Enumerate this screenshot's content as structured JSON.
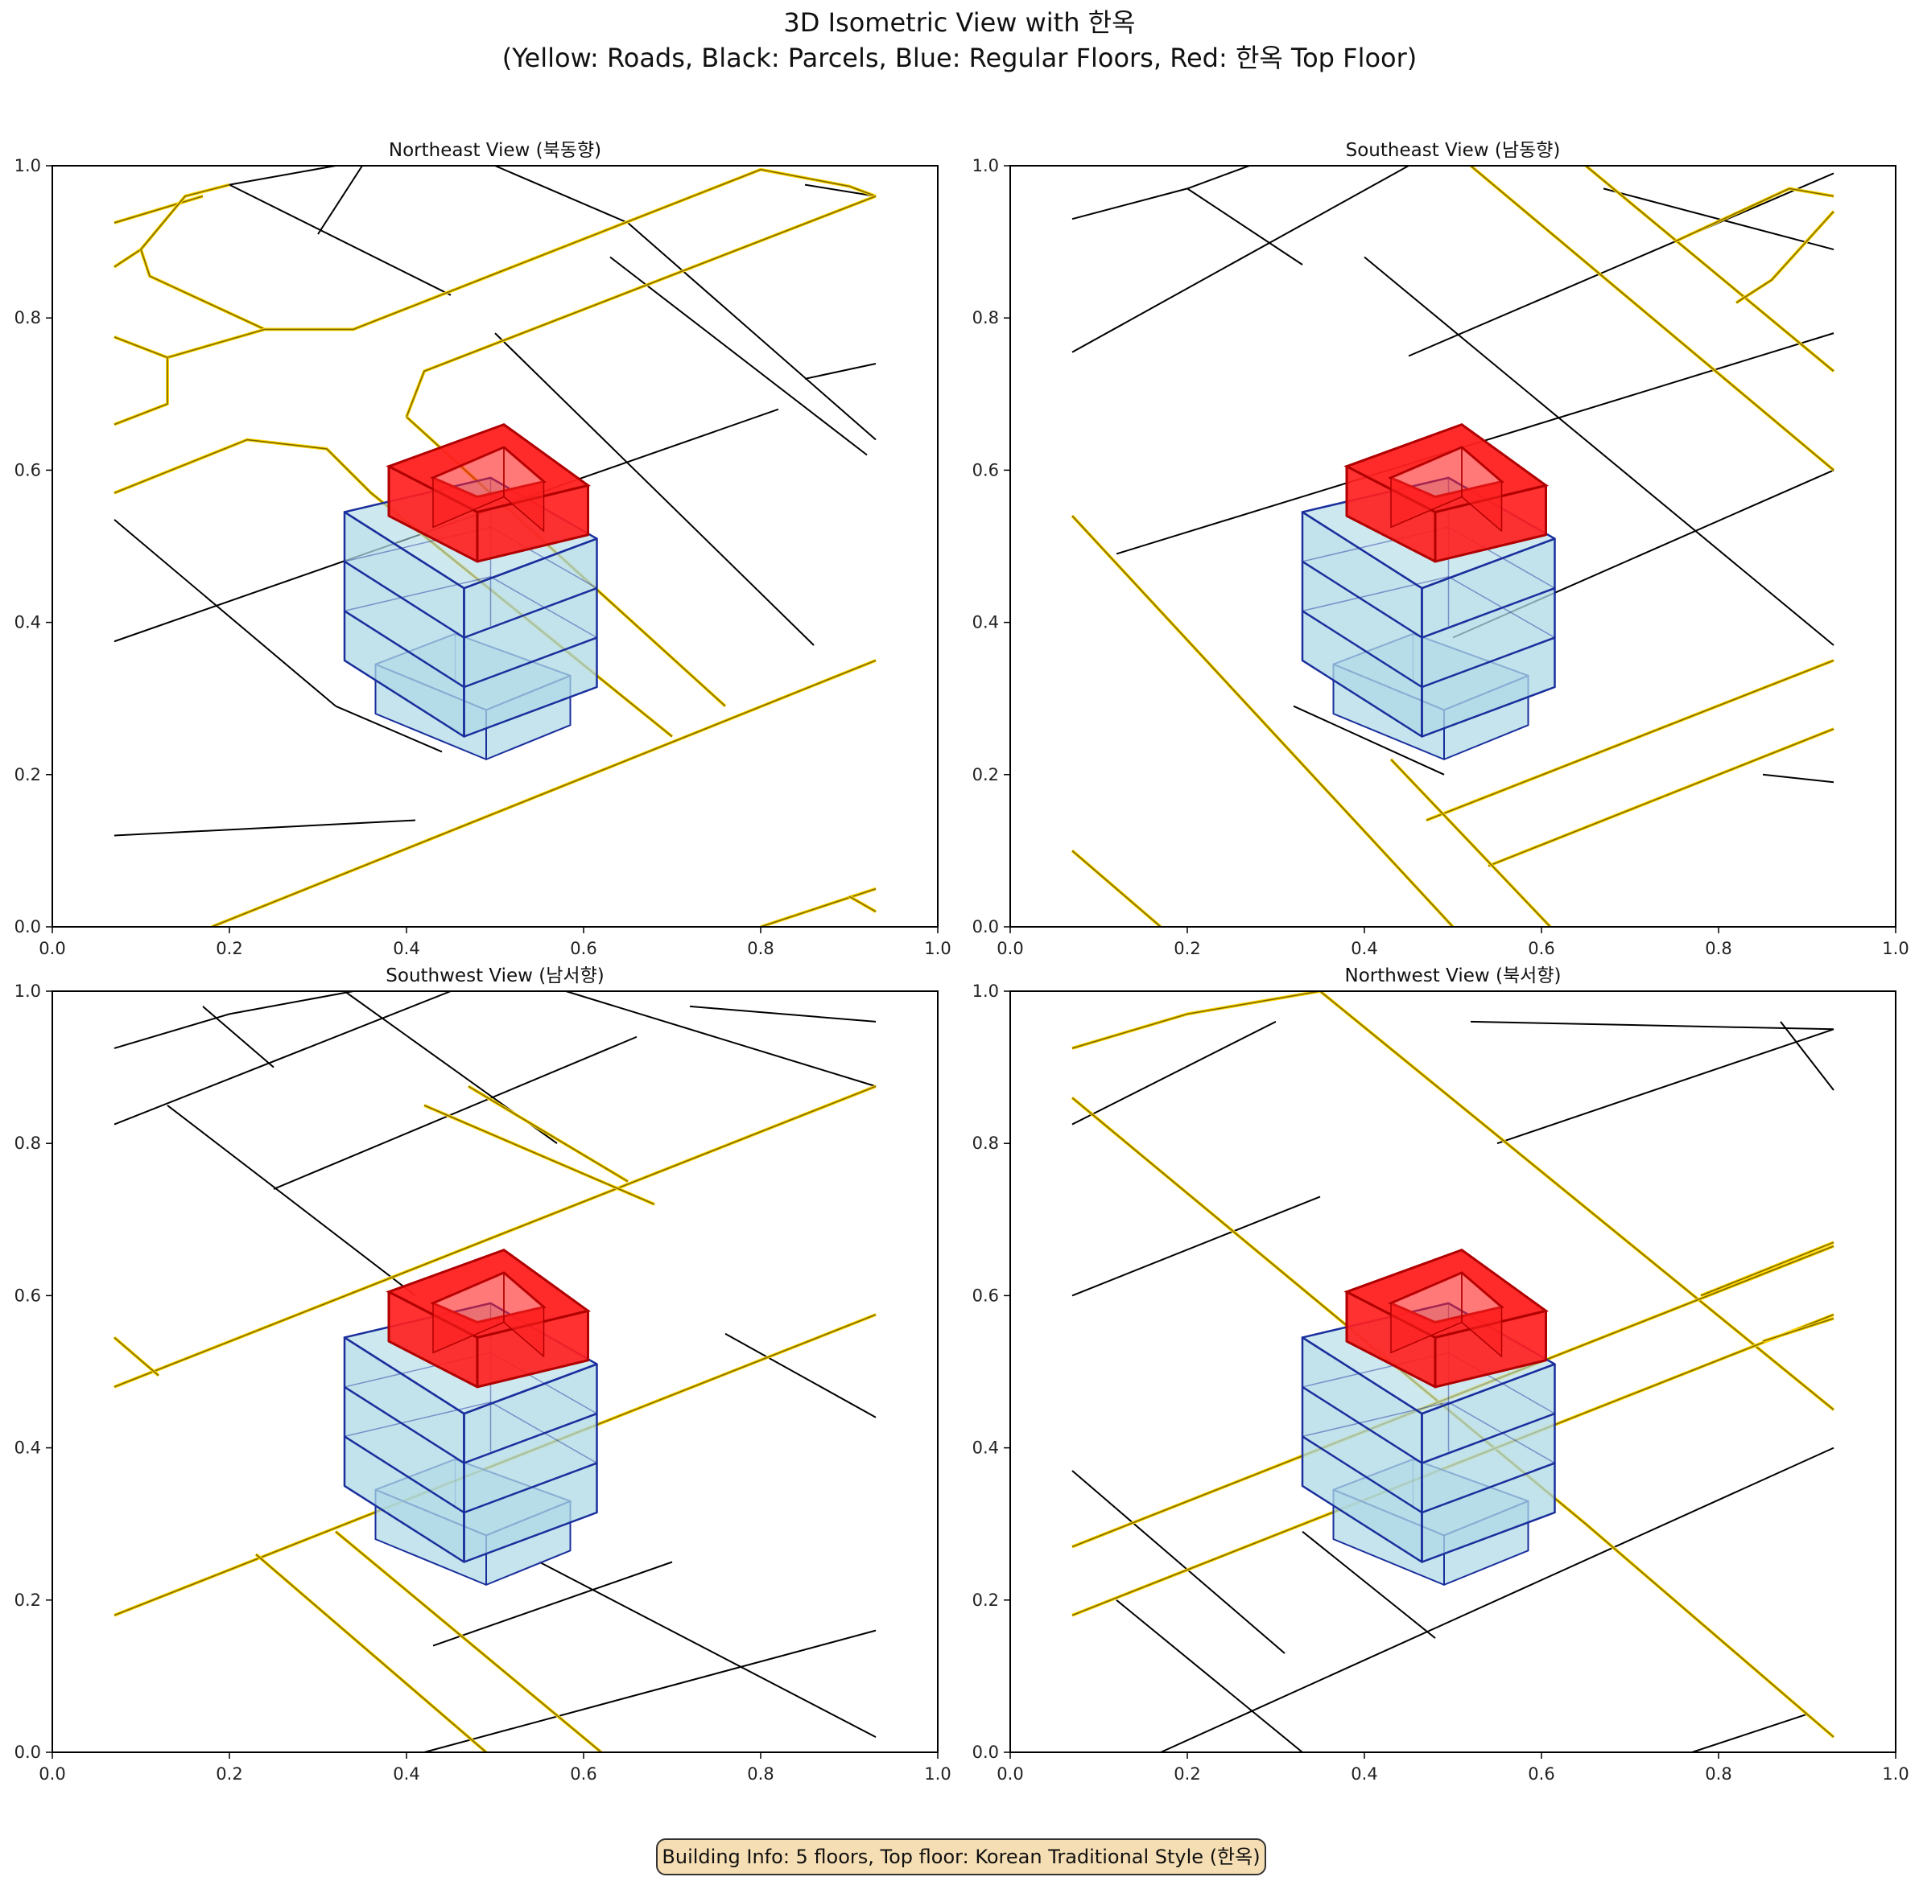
{
  "figure": {
    "title_line1": "3D Isometric View with 한옥",
    "title_line2": "(Yellow: Roads, Black: Parcels, Blue: Regular Floors, Red: 한옥 Top Floor)"
  },
  "info_box": "Building Info: 5 floors, Top floor: Korean Traditional Style (한옥)",
  "colors": {
    "road": "#ffd700",
    "road_edge": "#5a4a00",
    "parcel": "#000000",
    "floor_fill": "#add8e6",
    "floor_edge": "#1a2f9c",
    "hanok_fill": "#ff2020",
    "hanok_edge": "#b00000"
  },
  "axes_ticks": {
    "x": [
      "0.0",
      "0.2",
      "0.4",
      "0.6",
      "0.8",
      "1.0"
    ],
    "y": [
      "0.0",
      "0.2",
      "0.4",
      "0.6",
      "0.8",
      "1.0"
    ]
  },
  "panels": [
    {
      "title": "Northeast View (북동향)",
      "roads": [
        [
          [
            0.07,
            0.925
          ],
          [
            0.17,
            0.96
          ]
        ],
        [
          [
            0.07,
            0.867
          ],
          [
            0.1,
            0.89
          ],
          [
            0.15,
            0.96
          ],
          [
            0.2,
            0.975
          ]
        ],
        [
          [
            0.1,
            0.89
          ],
          [
            0.11,
            0.855
          ],
          [
            0.24,
            0.785
          ],
          [
            0.34,
            0.785
          ],
          [
            0.8,
            0.995
          ],
          [
            0.9,
            0.973
          ],
          [
            0.93,
            0.96
          ]
        ],
        [
          [
            0.07,
            0.775
          ],
          [
            0.13,
            0.748
          ],
          [
            0.24,
            0.785
          ]
        ],
        [
          [
            0.07,
            0.66
          ],
          [
            0.13,
            0.687
          ],
          [
            0.13,
            0.748
          ]
        ],
        [
          [
            0.07,
            0.57
          ],
          [
            0.22,
            0.64
          ],
          [
            0.31,
            0.628
          ],
          [
            0.36,
            0.57
          ],
          [
            0.7,
            0.25
          ]
        ],
        [
          [
            0.4,
            0.67
          ],
          [
            0.42,
            0.73
          ],
          [
            0.93,
            0.96
          ]
        ],
        [
          [
            0.4,
            0.67
          ],
          [
            0.76,
            0.29
          ]
        ],
        [
          [
            0.18,
            0.0
          ],
          [
            0.93,
            0.35
          ]
        ],
        [
          [
            0.8,
            0.0
          ],
          [
            0.93,
            0.05
          ]
        ],
        [
          [
            0.9,
            0.04
          ],
          [
            0.93,
            0.02
          ]
        ]
      ],
      "parcels": [
        [
          [
            0.2,
            0.975
          ],
          [
            0.32,
            1.0
          ]
        ],
        [
          [
            0.2,
            0.975
          ],
          [
            0.45,
            0.83
          ]
        ],
        [
          [
            0.35,
            1.0
          ],
          [
            0.3,
            0.91
          ]
        ],
        [
          [
            0.5,
            1.0
          ],
          [
            0.65,
            0.925
          ]
        ],
        [
          [
            0.65,
            0.925
          ],
          [
            0.93,
            0.64
          ]
        ],
        [
          [
            0.85,
            0.975
          ],
          [
            0.93,
            0.96
          ]
        ],
        [
          [
            0.07,
            0.535
          ],
          [
            0.32,
            0.29
          ]
        ],
        [
          [
            0.32,
            0.29
          ],
          [
            0.44,
            0.23
          ]
        ],
        [
          [
            0.07,
            0.375
          ],
          [
            0.82,
            0.68
          ]
        ],
        [
          [
            0.5,
            0.78
          ],
          [
            0.86,
            0.37
          ]
        ],
        [
          [
            0.63,
            0.88
          ],
          [
            0.92,
            0.62
          ]
        ],
        [
          [
            0.85,
            0.72
          ],
          [
            0.93,
            0.74
          ]
        ],
        [
          [
            0.07,
            0.12
          ],
          [
            0.41,
            0.14
          ]
        ]
      ]
    },
    {
      "title": "Southeast View (남동향)",
      "roads": [
        [
          [
            0.07,
            0.54
          ],
          [
            0.5,
            0.0
          ]
        ],
        [
          [
            0.07,
            0.1
          ],
          [
            0.17,
            0.0
          ]
        ],
        [
          [
            0.52,
            1.0
          ],
          [
            0.93,
            0.6
          ]
        ],
        [
          [
            0.65,
            1.0
          ],
          [
            0.93,
            0.73
          ]
        ],
        [
          [
            0.75,
            0.9
          ],
          [
            0.88,
            0.97
          ],
          [
            0.93,
            0.96
          ]
        ],
        [
          [
            0.82,
            0.82
          ],
          [
            0.86,
            0.85
          ],
          [
            0.93,
            0.94
          ]
        ],
        [
          [
            0.47,
            0.14
          ],
          [
            0.93,
            0.35
          ]
        ],
        [
          [
            0.54,
            0.08
          ],
          [
            0.93,
            0.26
          ]
        ],
        [
          [
            0.43,
            0.22
          ],
          [
            0.61,
            0.0
          ]
        ]
      ],
      "parcels": [
        [
          [
            0.07,
            0.93
          ],
          [
            0.2,
            0.97
          ],
          [
            0.27,
            1.0
          ]
        ],
        [
          [
            0.2,
            0.97
          ],
          [
            0.33,
            0.87
          ]
        ],
        [
          [
            0.07,
            0.755
          ],
          [
            0.45,
            1.0
          ]
        ],
        [
          [
            0.4,
            0.88
          ],
          [
            0.93,
            0.37
          ]
        ],
        [
          [
            0.12,
            0.49
          ],
          [
            0.93,
            0.78
          ]
        ],
        [
          [
            0.45,
            0.75
          ],
          [
            0.93,
            0.99
          ]
        ],
        [
          [
            0.32,
            0.29
          ],
          [
            0.49,
            0.2
          ]
        ],
        [
          [
            0.5,
            0.38
          ],
          [
            0.93,
            0.6
          ]
        ],
        [
          [
            0.67,
            0.97
          ],
          [
            0.93,
            0.89
          ]
        ],
        [
          [
            0.85,
            0.2
          ],
          [
            0.93,
            0.19
          ]
        ]
      ]
    },
    {
      "title": "Southwest View (남서향)",
      "roads": [
        [
          [
            0.07,
            0.48
          ],
          [
            0.93,
            0.875
          ]
        ],
        [
          [
            0.07,
            0.545
          ],
          [
            0.12,
            0.495
          ]
        ],
        [
          [
            0.42,
            0.85
          ],
          [
            0.68,
            0.72
          ]
        ],
        [
          [
            0.47,
            0.875
          ],
          [
            0.65,
            0.75
          ]
        ],
        [
          [
            0.07,
            0.18
          ],
          [
            0.93,
            0.575
          ]
        ],
        [
          [
            0.23,
            0.26
          ],
          [
            0.49,
            0.0
          ]
        ],
        [
          [
            0.32,
            0.29
          ],
          [
            0.62,
            0.0
          ]
        ]
      ],
      "parcels": [
        [
          [
            0.07,
            0.925
          ],
          [
            0.2,
            0.97
          ],
          [
            0.34,
            1.0
          ]
        ],
        [
          [
            0.07,
            0.825
          ],
          [
            0.45,
            1.0
          ]
        ],
        [
          [
            0.17,
            0.98
          ],
          [
            0.25,
            0.9
          ]
        ],
        [
          [
            0.33,
            1.0
          ],
          [
            0.57,
            0.8
          ]
        ],
        [
          [
            0.13,
            0.85
          ],
          [
            0.41,
            0.6
          ]
        ],
        [
          [
            0.25,
            0.74
          ],
          [
            0.66,
            0.94
          ]
        ],
        [
          [
            0.58,
            1.0
          ],
          [
            0.93,
            0.875
          ]
        ],
        [
          [
            0.72,
            0.98
          ],
          [
            0.93,
            0.96
          ]
        ],
        [
          [
            0.76,
            0.55
          ],
          [
            0.93,
            0.44
          ]
        ],
        [
          [
            0.43,
            0.14
          ],
          [
            0.7,
            0.25
          ]
        ],
        [
          [
            0.42,
            0.0
          ],
          [
            0.93,
            0.16
          ]
        ],
        [
          [
            0.55,
            0.25
          ],
          [
            0.93,
            0.02
          ]
        ]
      ]
    },
    {
      "title": "Northwest View (북서향)",
      "roads": [
        [
          [
            0.07,
            0.925
          ],
          [
            0.2,
            0.97
          ],
          [
            0.35,
            1.0
          ]
        ],
        [
          [
            0.07,
            0.86
          ],
          [
            0.65,
            0.3
          ],
          [
            0.93,
            0.02
          ]
        ],
        [
          [
            0.35,
            1.0
          ],
          [
            0.93,
            0.45
          ]
        ],
        [
          [
            0.07,
            0.27
          ],
          [
            0.93,
            0.665
          ]
        ],
        [
          [
            0.07,
            0.18
          ],
          [
            0.93,
            0.575
          ]
        ],
        [
          [
            0.78,
            0.6
          ],
          [
            0.93,
            0.67
          ]
        ],
        [
          [
            0.85,
            0.54
          ],
          [
            0.93,
            0.57
          ]
        ]
      ],
      "parcels": [
        [
          [
            0.07,
            0.825
          ],
          [
            0.3,
            0.96
          ]
        ],
        [
          [
            0.07,
            0.6
          ],
          [
            0.35,
            0.73
          ]
        ],
        [
          [
            0.52,
            0.96
          ],
          [
            0.93,
            0.95
          ]
        ],
        [
          [
            0.55,
            0.8
          ],
          [
            0.93,
            0.95
          ]
        ],
        [
          [
            0.07,
            0.37
          ],
          [
            0.31,
            0.13
          ]
        ],
        [
          [
            0.12,
            0.2
          ],
          [
            0.33,
            0.0
          ]
        ],
        [
          [
            0.17,
            0.0
          ],
          [
            0.93,
            0.4
          ]
        ],
        [
          [
            0.33,
            0.29
          ],
          [
            0.48,
            0.15
          ]
        ],
        [
          [
            0.77,
            0.0
          ],
          [
            0.9,
            0.05
          ]
        ],
        [
          [
            0.87,
            0.96
          ],
          [
            0.93,
            0.87
          ]
        ]
      ]
    }
  ]
}
